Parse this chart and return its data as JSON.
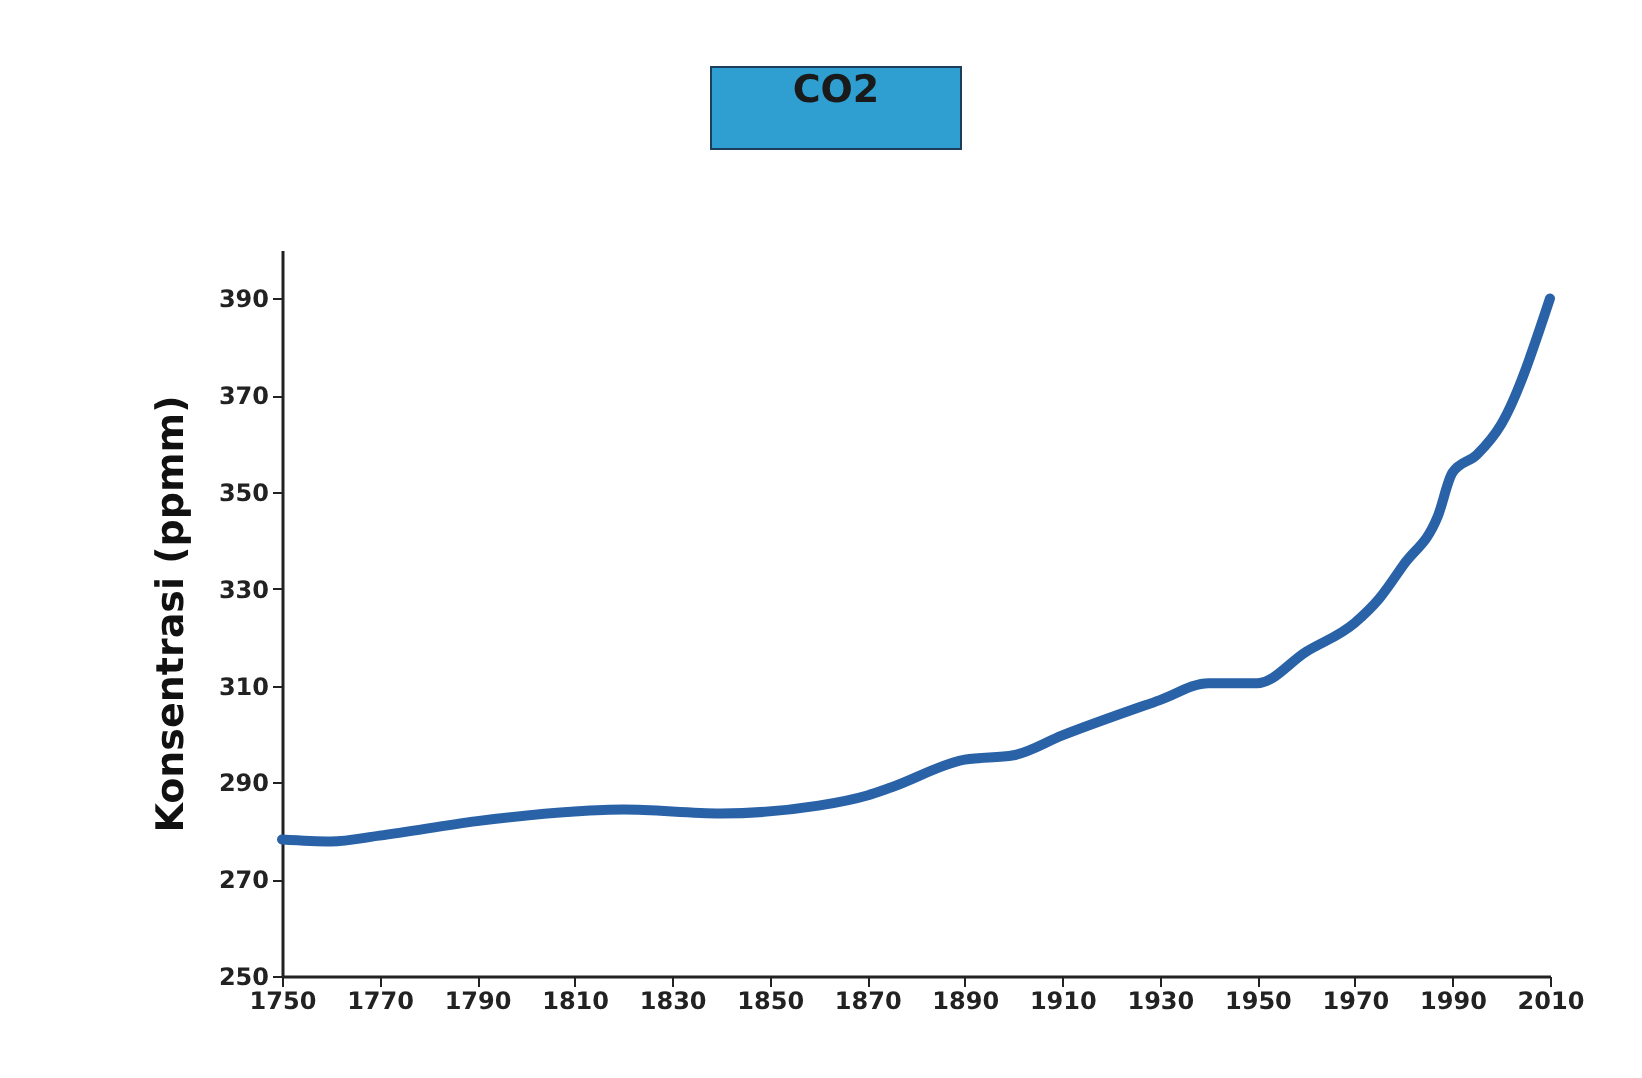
{
  "chart_data": {
    "type": "line",
    "title": "CO2",
    "ylabel": "Konsentrasi (ppmm)",
    "x": [
      1750,
      1760,
      1770,
      1790,
      1810,
      1820,
      1840,
      1860,
      1870,
      1875,
      1890,
      1900,
      1910,
      1930,
      1940,
      1950,
      1960,
      1970,
      1975,
      1980,
      1987,
      1990,
      1995,
      2000,
      2010
    ],
    "series": [
      {
        "color": "#2a62a8",
        "values": [
          278.2,
          277.8,
          279,
          282,
          284,
          284.4,
          283.6,
          285.2,
          287.3,
          289,
          294.7,
          295.6,
          299.7,
          307,
          310.5,
          310.5,
          317,
          323,
          328,
          335,
          345,
          354,
          357.7,
          364,
          390
        ]
      }
    ],
    "xlim": [
      1750,
      2010
    ],
    "xticks": [
      1750,
      1770,
      1790,
      1810,
      1830,
      1850,
      1870,
      1890,
      1910,
      1930,
      1950,
      1970,
      1990,
      2010
    ],
    "ylim": [
      250,
      400
    ],
    "yticks": [
      250,
      270,
      290,
      310,
      330,
      350,
      370,
      390
    ],
    "grid": false,
    "marker": "none",
    "line_style": "solid"
  }
}
